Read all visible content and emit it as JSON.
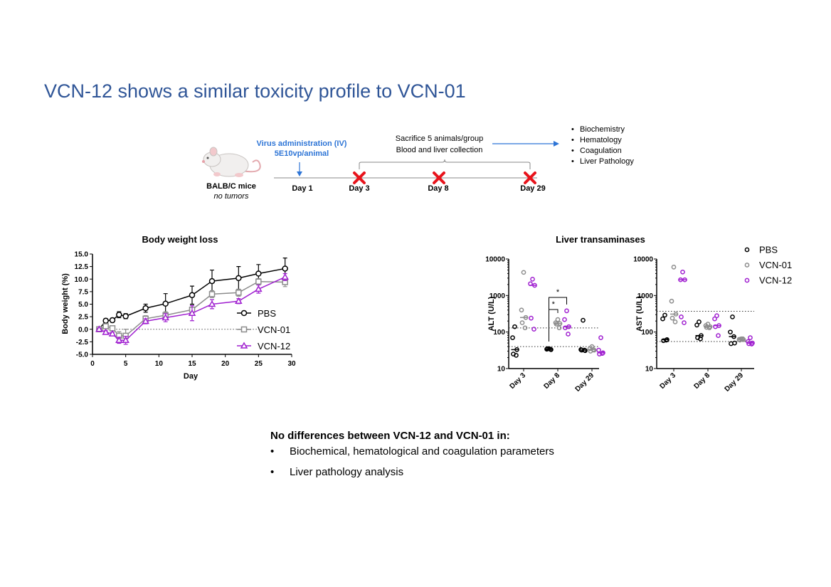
{
  "title": "VCN-12 shows a similar toxicity profile to VCN-01",
  "timeline": {
    "mouse_label": "BALB/C mice",
    "mouse_sublabel": "no tumors",
    "virus_line1": "Virus administration (IV)",
    "virus_line2": "5E10vp/animal",
    "days": [
      "Day 1",
      "Day 3",
      "Day 8",
      "Day 29"
    ],
    "sacrifice_line1": "Sacrifice 5 animals/group",
    "sacrifice_line2": "Blood and liver collection",
    "analyses": [
      "Biochemistry",
      "Hematology",
      "Coagulation",
      "Liver Pathology"
    ]
  },
  "conclusion": {
    "heading": "No differences between VCN-12 and VCN-01 in:",
    "bullets": [
      "Biochemical, hematological and coagulation parameters",
      "Liver pathology analysis"
    ]
  },
  "colors": {
    "PBS": "#000000",
    "VCN-01": "#8c8c8c",
    "VCN-12": "#a020d0",
    "title": "#2F5597",
    "accent": "#2E75D6",
    "cross": "#e8141c"
  },
  "chart_data": [
    {
      "type": "line",
      "title": "Body weight loss",
      "xlabel": "Day",
      "ylabel": "Body weight (%)",
      "xlim": [
        0,
        30
      ],
      "ylim": [
        -5,
        15
      ],
      "xticks": [
        0,
        5,
        10,
        15,
        20,
        25,
        30
      ],
      "yticks": [
        "-5.0",
        "-2.5",
        "0.0",
        "2.5",
        "5.0",
        "7.5",
        "10.0",
        "12.5",
        "15.0"
      ],
      "legend_position": "bottom-right",
      "x": [
        1,
        2,
        3,
        4,
        5,
        8,
        11,
        15,
        18,
        22,
        25,
        29
      ],
      "series": [
        {
          "name": "PBS",
          "marker": "circle",
          "values": [
            0,
            1.7,
            1.8,
            2.9,
            2.6,
            4.2,
            5.1,
            6.8,
            9.6,
            10.2,
            11.1,
            12.1
          ],
          "error": [
            0.3,
            0.4,
            0.4,
            0.6,
            0.5,
            0.8,
            2.0,
            1.8,
            2.2,
            2.3,
            1.8,
            2.1
          ]
        },
        {
          "name": "VCN-01",
          "marker": "square",
          "values": [
            0,
            0.6,
            0.2,
            -1.3,
            -1.3,
            2.1,
            2.8,
            3.9,
            7.0,
            7.3,
            9.5,
            9.4
          ],
          "error": [
            0.2,
            0.5,
            0.3,
            0.8,
            1.3,
            0.6,
            0.7,
            0.9,
            0.7,
            0.7,
            0.6,
            0.9
          ]
        },
        {
          "name": "VCN-12",
          "marker": "triangle",
          "values": [
            0,
            -0.6,
            -0.9,
            -2.2,
            -2.2,
            1.6,
            2.3,
            3.2,
            5.0,
            5.6,
            8.0,
            10.4
          ],
          "error": [
            0.2,
            0.3,
            0.3,
            0.6,
            0.8,
            0.5,
            0.8,
            1.5,
            0.9,
            0.5,
            0.8,
            0.7
          ]
        }
      ]
    },
    {
      "type": "scatter",
      "title": "Liver transaminases",
      "ylabel": "ALT (U/L)",
      "yscale": "log",
      "ylim": [
        10,
        10000
      ],
      "yticks": [
        "10",
        "100",
        "1000",
        "10000"
      ],
      "categories": [
        "Day 3",
        "Day 8",
        "Day 29"
      ],
      "reference_lines": [
        130,
        40
      ],
      "significance": [
        {
          "category": "Day 8",
          "pair": [
            "PBS",
            "VCN-01"
          ],
          "label": "*"
        },
        {
          "category": "Day 8",
          "pair": [
            "PBS",
            "VCN-12"
          ],
          "label": "*"
        }
      ],
      "series": [
        {
          "name": "PBS",
          "values": [
            [
              140,
              70,
              33,
              25,
              23
            ],
            [
              35,
              34,
              33,
              35,
              34
            ],
            [
              210,
              33,
              31,
              32,
              32
            ]
          ]
        },
        {
          "name": "VCN-01",
          "values": [
            [
              4300,
              400,
              250,
              180,
              130
            ],
            [
              220,
              180,
              170,
              165,
              130
            ],
            [
              40,
              35,
              32,
              30,
              33
            ]
          ]
        },
        {
          "name": "VCN-12",
          "values": [
            [
              2800,
              2100,
              1900,
              240,
              120
            ],
            [
              380,
              220,
              140,
              130,
              88
            ],
            [
              70,
              32,
              27,
              25,
              26
            ]
          ]
        }
      ]
    },
    {
      "type": "scatter",
      "ylabel": "AST (U/L)",
      "yscale": "log",
      "ylim": [
        10,
        10000
      ],
      "yticks": [
        "10",
        "100",
        "1000",
        "10000"
      ],
      "categories": [
        "Day 3",
        "Day 8",
        "Day 29"
      ],
      "reference_lines": [
        370,
        55
      ],
      "legend": [
        "PBS",
        "VCN-01",
        "VCN-12"
      ],
      "legend_position": "top-right",
      "series": [
        {
          "name": "PBS",
          "values": [
            [
              290,
              230,
              62,
              58,
              60
            ],
            [
              190,
              155,
              80,
              70,
              65
            ],
            [
              260,
              100,
              50,
              48,
              75
            ]
          ]
        },
        {
          "name": "VCN-01",
          "values": [
            [
              6000,
              700,
              310,
              240,
              190
            ],
            [
              165,
              150,
              140,
              135,
              130
            ],
            [
              65,
              63,
              62,
              60,
              65
            ]
          ]
        },
        {
          "name": "VCN-12",
          "values": [
            [
              4400,
              2700,
              2700,
              260,
              180
            ],
            [
              280,
              230,
              150,
              140,
              80
            ],
            [
              70,
              55,
              50,
              48,
              47
            ]
          ]
        }
      ]
    }
  ]
}
